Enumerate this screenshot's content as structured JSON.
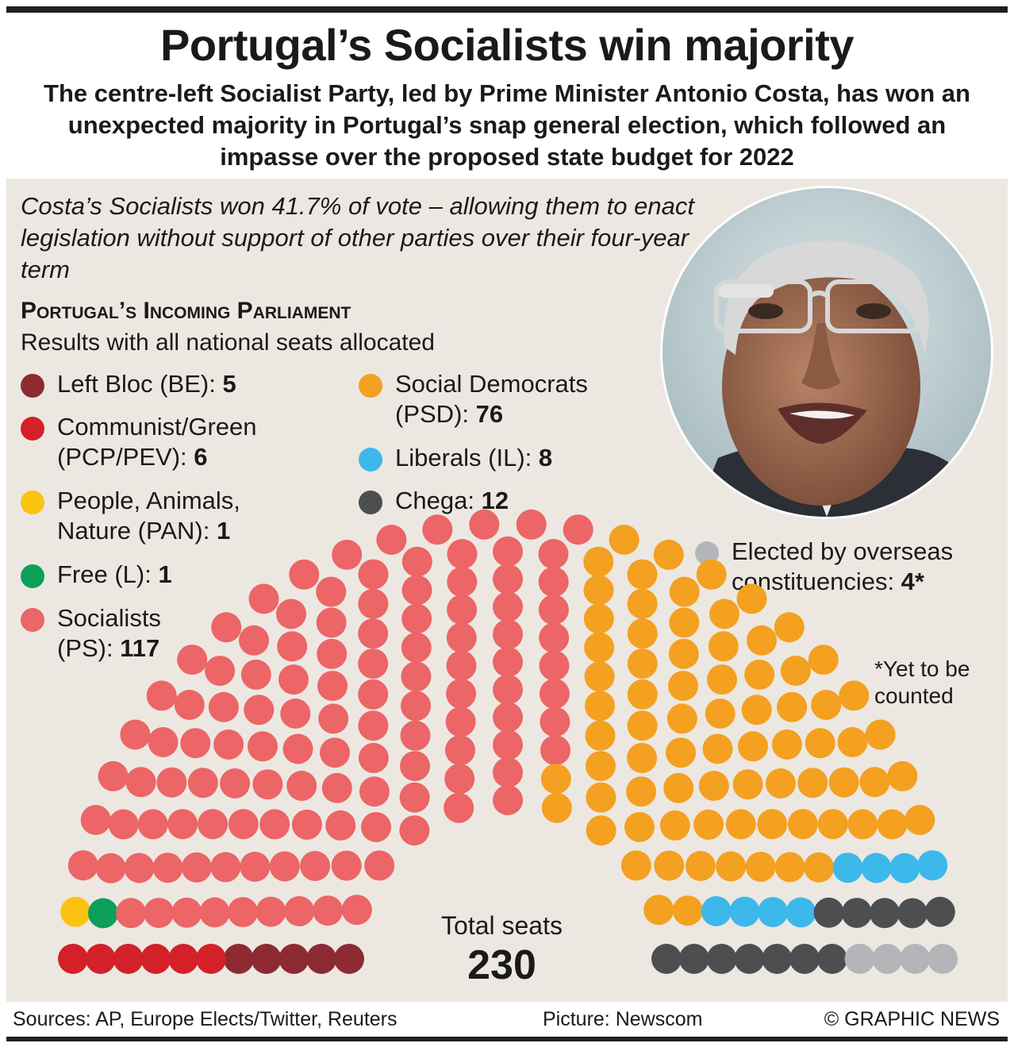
{
  "title": "Portugal’s Socialists win majority",
  "subtitle": "The centre-left Socialist Party, led by Prime Minister Antonio Costa, has won an unexpected majority in Portugal’s snap general election, which followed an impasse over the proposed state budget for 2022",
  "intro": "Costa’s Socialists won 41.7% of vote – allowing them to enact legislation without support of other parties over their four-year term",
  "section_title": "Portugal’s Incoming Parliament",
  "section_subtitle": "Results with all national seats allocated",
  "legend": [
    {
      "label": "Left Bloc (BE): ",
      "value": "5"
    },
    {
      "label": "Communist/Green",
      "label2": "(PCP/PEV): ",
      "value": "6"
    },
    {
      "label": "People, Animals,",
      "label2": "Nature (PAN): ",
      "value": "1"
    },
    {
      "label": "Free (L): ",
      "value": "1"
    },
    {
      "label": "Socialists",
      "label2": "(PS): ",
      "value": "117"
    },
    {
      "label": "Social Democrats",
      "label2": "(PSD): ",
      "value": "76"
    },
    {
      "label": "Liberals (IL): ",
      "value": "8"
    },
    {
      "label": "Chega: ",
      "value": "12"
    },
    {
      "label": "Elected by overseas",
      "label2": "constituencies: ",
      "value": "4*"
    }
  ],
  "footnote": "*Yet to be counted",
  "total_label": "Total seats",
  "total_value": "230",
  "footer": {
    "sources": "Sources: AP, Europe Elects/Twitter, Reuters",
    "picture": "Picture: Newscom",
    "credit": "© GRAPHIC NEWS"
  },
  "chart_data": {
    "type": "hemicycle",
    "total": 230,
    "series": [
      {
        "name": "Left Bloc (BE)",
        "value": 5,
        "color": "#8e2a31"
      },
      {
        "name": "Communist/Green (PCP/PEV)",
        "value": 6,
        "color": "#d42029"
      },
      {
        "name": "People, Animals, Nature (PAN)",
        "value": 1,
        "color": "#fbc20f"
      },
      {
        "name": "Free (L)",
        "value": 1,
        "color": "#0d9f5a"
      },
      {
        "name": "Socialists (PS)",
        "value": 117,
        "color": "#ec6567"
      },
      {
        "name": "Social Democrats (PSD)",
        "value": 76,
        "color": "#f4a020"
      },
      {
        "name": "Liberals (IL)",
        "value": 8,
        "color": "#3db8ea"
      },
      {
        "name": "Chega",
        "value": 12,
        "color": "#4d4e50"
      },
      {
        "name": "Elected by overseas constituencies",
        "value": 4,
        "color": "#b3b5b8"
      }
    ]
  },
  "icons": {
    "photo": "portrait-photo"
  }
}
